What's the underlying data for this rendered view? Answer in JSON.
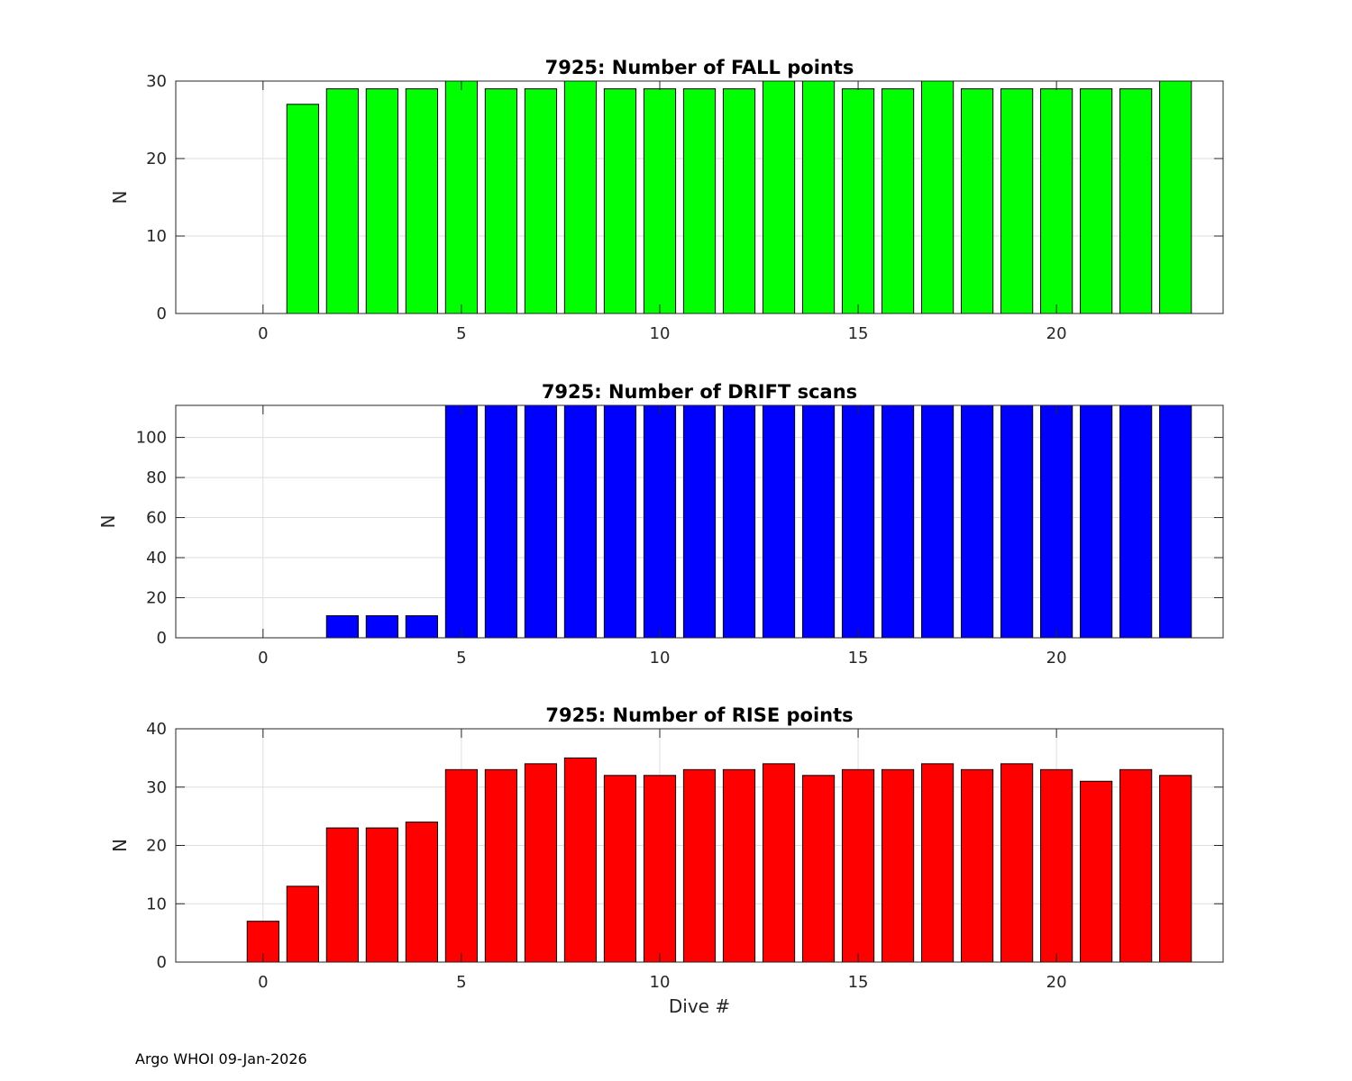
{
  "chart_data": [
    {
      "type": "bar",
      "title": "7925: Number of FALL points",
      "xlabel": "",
      "ylabel": "N",
      "xlim": [
        -2.2,
        24.2
      ],
      "ylim": [
        0,
        30
      ],
      "xticks": [
        0,
        5,
        10,
        15,
        20
      ],
      "yticks": [
        0,
        10,
        20,
        30
      ],
      "grid": true,
      "color": "#00ff00",
      "x": [
        1,
        2,
        3,
        4,
        5,
        6,
        7,
        8,
        9,
        10,
        11,
        12,
        13,
        14,
        15,
        16,
        17,
        18,
        19,
        20,
        21,
        22,
        23
      ],
      "values": [
        27,
        29,
        29,
        29,
        30,
        29,
        29,
        30,
        29,
        29,
        29,
        29,
        30,
        30,
        29,
        29,
        30,
        29,
        29,
        29,
        29,
        29,
        30
      ]
    },
    {
      "type": "bar",
      "title": "7925: Number of DRIFT scans",
      "xlabel": "",
      "ylabel": "N",
      "xlim": [
        -2.2,
        24.2
      ],
      "ylim": [
        0,
        116
      ],
      "xticks": [
        0,
        5,
        10,
        15,
        20
      ],
      "yticks": [
        0,
        20,
        40,
        60,
        80,
        100
      ],
      "grid": true,
      "color": "#0000ff",
      "x": [
        2,
        3,
        4,
        5,
        6,
        7,
        8,
        9,
        10,
        11,
        12,
        13,
        14,
        15,
        16,
        17,
        18,
        19,
        20,
        21,
        22,
        23
      ],
      "values": [
        11,
        11,
        11,
        116,
        116,
        116,
        116,
        116,
        116,
        116,
        116,
        116,
        116,
        116,
        116,
        116,
        116,
        116,
        116,
        116,
        116,
        116
      ]
    },
    {
      "type": "bar",
      "title": "7925: Number of RISE points",
      "xlabel": "Dive #",
      "ylabel": "N",
      "xlim": [
        -2.2,
        24.2
      ],
      "ylim": [
        0,
        40
      ],
      "xticks": [
        0,
        5,
        10,
        15,
        20
      ],
      "yticks": [
        0,
        10,
        20,
        30,
        40
      ],
      "grid": true,
      "color": "#ff0000",
      "x": [
        0,
        1,
        2,
        3,
        4,
        5,
        6,
        7,
        8,
        9,
        10,
        11,
        12,
        13,
        14,
        15,
        16,
        17,
        18,
        19,
        20,
        21,
        22,
        23
      ],
      "values": [
        7,
        13,
        23,
        23,
        24,
        33,
        33,
        34,
        35,
        32,
        32,
        33,
        33,
        34,
        32,
        33,
        33,
        34,
        33,
        34,
        33,
        31,
        33,
        32
      ]
    }
  ],
  "footer": {
    "text": "Argo WHOI 09-Jan-2026"
  }
}
